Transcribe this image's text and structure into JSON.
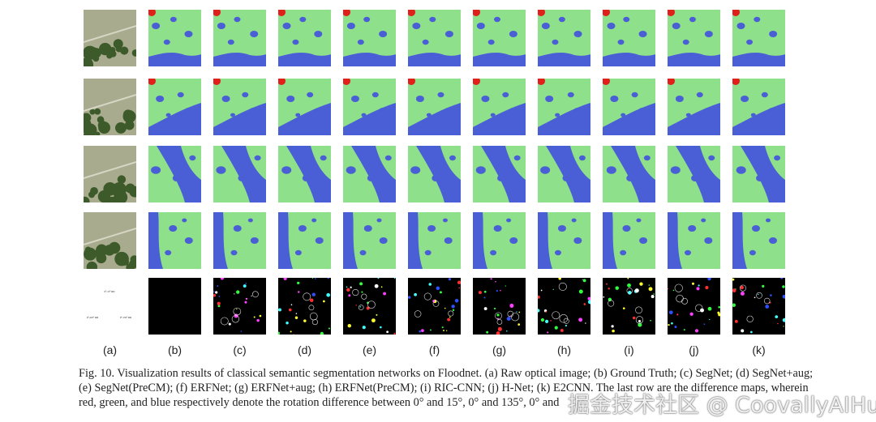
{
  "columns": [
    "(a)",
    "(b)",
    "(c)",
    "(d)",
    "(e)",
    "(f)",
    "(g)",
    "(h)",
    "(i)",
    "(j)",
    "(k)"
  ],
  "colors": {
    "land": "#8ee08a",
    "water": "#4a5fd6",
    "building": "#e0201a",
    "diff_bg": "#000000"
  },
  "legend_circles": [
    {
      "color": "#ff1010",
      "label": "0°-15° RD"
    },
    {
      "color": "#10d020",
      "label": "0°-135° RD"
    },
    {
      "color": "#1010ff",
      "label": "0°-225° RD"
    }
  ],
  "caption": {
    "line1": "Fig. 10.  Visualization results of classical semantic segmentation networks on Floodnet. (a) Raw optical image; (b) Ground Truth; (c) SegNet; (d) SegNet+aug;",
    "line2": "(e) SegNet(PreCM); (f) ERFNet; (g) ERFNet+aug; (h) ERFNet(PreCM); (i) RIC-CNN; (j) H-Net; (k) E2CNN. The last row are the difference maps, wherein",
    "line3": "red, green, and blue respectively denote the rotation difference between 0° and 15°, 0° and 135°, 0° and"
  },
  "watermark": "掘金技术社区 @ CoovallyAIHub"
}
